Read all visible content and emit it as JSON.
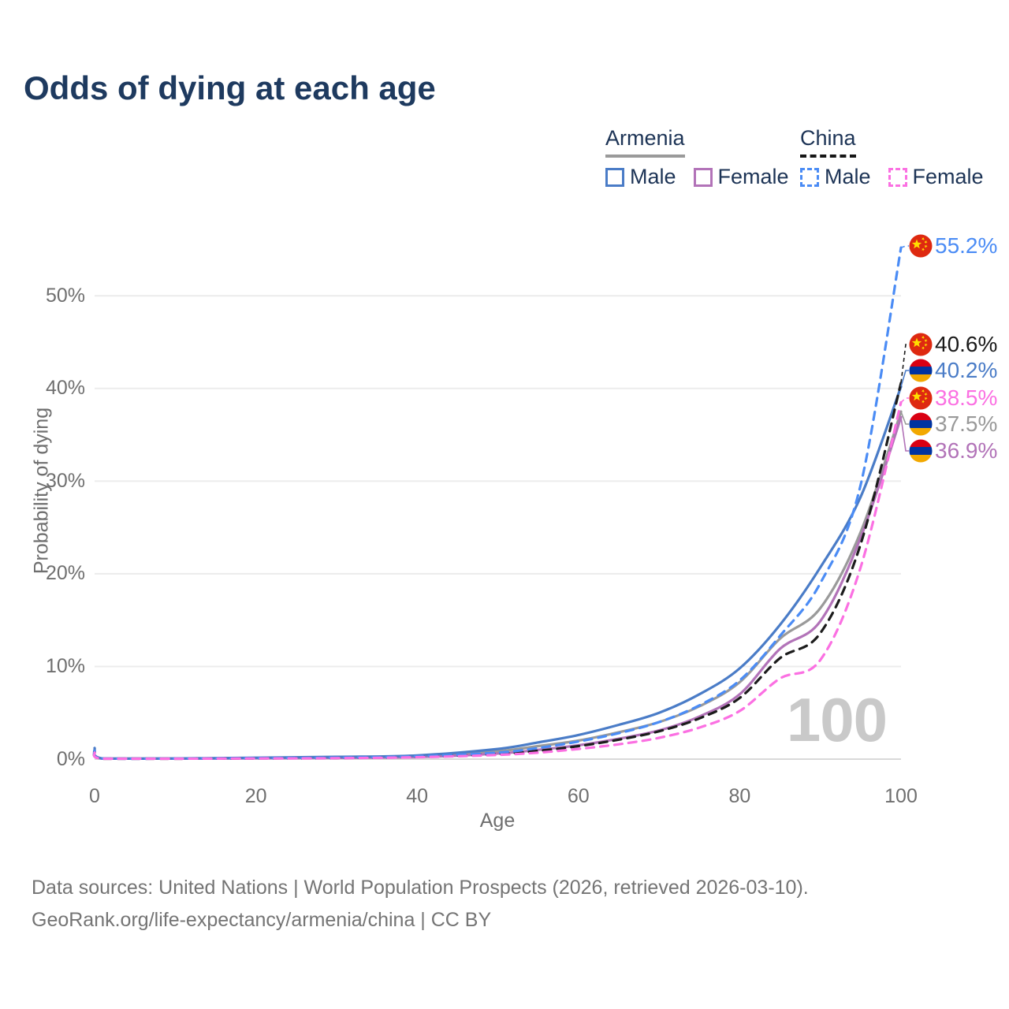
{
  "title": "Odds of dying at each age",
  "legend": {
    "armenia": {
      "title": "Armenia",
      "male": "Male",
      "female": "Female"
    },
    "china": {
      "title": "China",
      "male": "Male",
      "female": "Female"
    }
  },
  "axes": {
    "y_label": "Probability of dying",
    "x_label": "Age",
    "y_ticks": [
      "0%",
      "10%",
      "20%",
      "30%",
      "40%",
      "50%"
    ],
    "x_ticks": [
      "0",
      "20",
      "40",
      "60",
      "80",
      "100"
    ]
  },
  "watermark": "100",
  "footer": {
    "line1": "Data sources: United Nations | World Population Prospects (2026, retrieved 2026-03-10).",
    "line2": "GeoRank.org/life-expectancy/armenia/china | CC BY"
  },
  "colors": {
    "title_text": "#1e3a5f",
    "armenia_male": "#4a7cc7",
    "armenia_female": "#b273b8",
    "armenia_both": "#9a9a9a",
    "china_male": "#4b8cf5",
    "china_female": "#fb70e2",
    "china_both": "#1c1c1c",
    "gridline": "#ececec",
    "axis_line": "#d9d9d9",
    "tick_text": "#6f6f6f",
    "footer_text": "#747474",
    "watermark_text": "#c9c9c9",
    "flag_armenia": [
      "#d90012",
      "#0033a0",
      "#f2a800"
    ],
    "flag_china": [
      "#de2910",
      "#ffde00"
    ]
  },
  "chart_data": {
    "type": "line",
    "title": "Odds of dying at each age",
    "xlabel": "Age",
    "ylabel": "Probability of dying",
    "xlim": [
      0,
      100
    ],
    "ylim_percent": [
      0,
      57
    ],
    "grid": "horizontal-only",
    "legend_position": "top-right",
    "x_ages": [
      0,
      1,
      10,
      20,
      30,
      40,
      50,
      55,
      60,
      65,
      70,
      75,
      80,
      85,
      90,
      95,
      100
    ],
    "series": [
      {
        "id": "armenia-both",
        "name": "Armenia Both sexes",
        "country": "Armenia",
        "sex": "both",
        "color": "#9a9a9a",
        "dash": false,
        "values": [
          1.0,
          0.06,
          0.06,
          0.12,
          0.2,
          0.3,
          0.85,
          1.4,
          2.0,
          2.9,
          4.0,
          5.7,
          8.3,
          13.0,
          16.3,
          24.5,
          37.5
        ]
      },
      {
        "id": "armenia-female",
        "name": "Armenia Female",
        "country": "Armenia",
        "sex": "female",
        "color": "#b273b8",
        "dash": false,
        "values": [
          0.9,
          0.05,
          0.05,
          0.09,
          0.14,
          0.22,
          0.6,
          1.0,
          1.5,
          2.2,
          3.1,
          4.6,
          7.0,
          11.9,
          14.9,
          23.9,
          36.9
        ]
      },
      {
        "id": "armenia-male",
        "name": "Armenia Male",
        "country": "Armenia",
        "sex": "male",
        "color": "#4a7cc7",
        "dash": false,
        "values": [
          1.2,
          0.07,
          0.07,
          0.15,
          0.25,
          0.4,
          1.1,
          1.8,
          2.6,
          3.7,
          5.0,
          7.0,
          9.8,
          14.5,
          20.7,
          28.3,
          40.2
        ]
      },
      {
        "id": "china-both",
        "name": "China Both sexes",
        "country": "China",
        "sex": "both",
        "color": "#1c1c1c",
        "dash": true,
        "values": [
          0.8,
          0.04,
          0.04,
          0.08,
          0.12,
          0.25,
          0.55,
          0.9,
          1.4,
          2.1,
          3.0,
          4.4,
          6.6,
          10.9,
          13.6,
          23.2,
          40.6
        ]
      },
      {
        "id": "china-male",
        "name": "China Male",
        "country": "China",
        "sex": "male",
        "color": "#4b8cf5",
        "dash": true,
        "values": [
          0.9,
          0.05,
          0.05,
          0.1,
          0.15,
          0.3,
          0.7,
          1.2,
          1.9,
          2.8,
          4.0,
          5.8,
          8.5,
          13.3,
          19.0,
          29.6,
          55.2
        ]
      },
      {
        "id": "china-female",
        "name": "China Female",
        "country": "China",
        "sex": "female",
        "color": "#fb70e2",
        "dash": true,
        "values": [
          0.7,
          0.04,
          0.04,
          0.07,
          0.1,
          0.2,
          0.45,
          0.7,
          1.1,
          1.6,
          2.3,
          3.4,
          5.2,
          8.7,
          10.7,
          20.7,
          38.5
        ]
      }
    ],
    "end_labels": [
      {
        "series": "china-male",
        "text": "55.2%",
        "value": 55.2,
        "flag": "china",
        "color": "#4b8cf5"
      },
      {
        "series": "china-both",
        "text": "40.6%",
        "value": 40.6,
        "flag": "china",
        "color": "#1a1a1a"
      },
      {
        "series": "armenia-male",
        "text": "40.2%",
        "value": 40.2,
        "flag": "armenia",
        "color": "#4a7cc7"
      },
      {
        "series": "china-female",
        "text": "38.5%",
        "value": 38.5,
        "flag": "china",
        "color": "#fb70e2"
      },
      {
        "series": "armenia-both",
        "text": "37.5%",
        "value": 37.5,
        "flag": "armenia",
        "color": "#999999"
      },
      {
        "series": "armenia-female",
        "text": "36.9%",
        "value": 36.9,
        "flag": "armenia",
        "color": "#b273b8"
      }
    ]
  }
}
